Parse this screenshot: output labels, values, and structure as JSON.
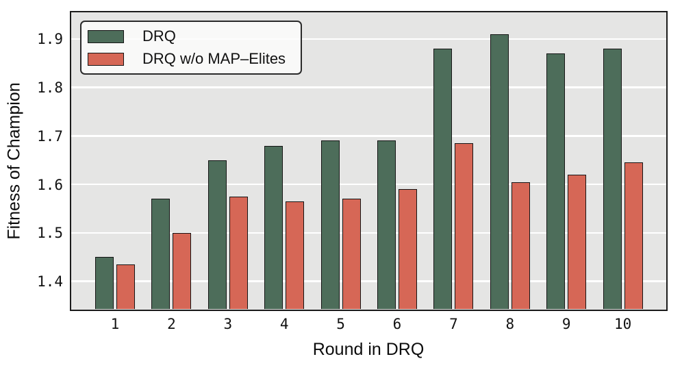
{
  "chart_data": {
    "type": "bar",
    "title": "",
    "xlabel": "Round in DRQ",
    "ylabel": "Fitness of Champion",
    "categories": [
      "1",
      "2",
      "3",
      "4",
      "5",
      "6",
      "7",
      "8",
      "9",
      "10"
    ],
    "series": [
      {
        "name": "DRQ",
        "color": "#4d6d5a",
        "values": [
          1.45,
          1.57,
          1.65,
          1.68,
          1.69,
          1.69,
          1.88,
          1.91,
          1.87,
          1.88
        ]
      },
      {
        "name": "DRQ w/o MAP–Elites",
        "color": "#d66756",
        "values": [
          1.435,
          1.5,
          1.575,
          1.565,
          1.57,
          1.59,
          1.685,
          1.605,
          1.62,
          1.645
        ]
      }
    ],
    "ylim": [
      1.343,
      1.955
    ],
    "yticks": [
      "1.4",
      "1.5",
      "1.6",
      "1.7",
      "1.8",
      "1.9"
    ],
    "grid": "horizontal-white-on-gray",
    "legend_position": "upper-left",
    "colors": {
      "plot_background": "#e5e5e4",
      "gridline": "#ffffff",
      "spine": "#1b1b1b",
      "bar_edge": "#141414",
      "text": "#111111"
    }
  }
}
